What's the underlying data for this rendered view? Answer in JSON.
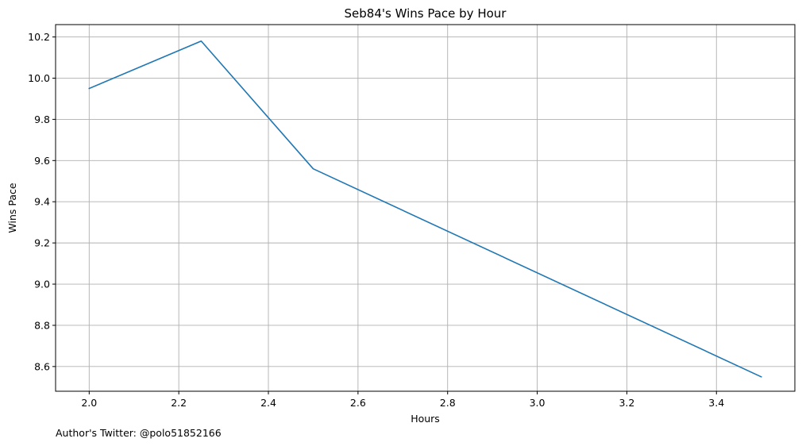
{
  "chart_data": {
    "type": "line",
    "title": "Seb84's Wins Pace by Hour",
    "xlabel": "Hours",
    "ylabel": "Wins Pace",
    "xlim": [
      1.925,
      3.575
    ],
    "ylim": [
      8.48,
      10.26
    ],
    "xticks": [
      2.0,
      2.2,
      2.4,
      2.6,
      2.8,
      3.0,
      3.2,
      3.4
    ],
    "yticks": [
      8.6,
      8.8,
      9.0,
      9.2,
      9.4,
      9.6,
      9.8,
      10.0,
      10.2
    ],
    "grid": true,
    "series": [
      {
        "x": [
          2.0,
          2.25,
          2.5,
          3.5
        ],
        "y": [
          9.95,
          10.18,
          9.56,
          8.55
        ],
        "color": "#1f77b4"
      }
    ]
  },
  "footnote": "Author's Twitter: @polo51852166",
  "colors": {
    "grid": "#b0b0b0",
    "axis": "#000000",
    "line": "#1f77b4"
  }
}
